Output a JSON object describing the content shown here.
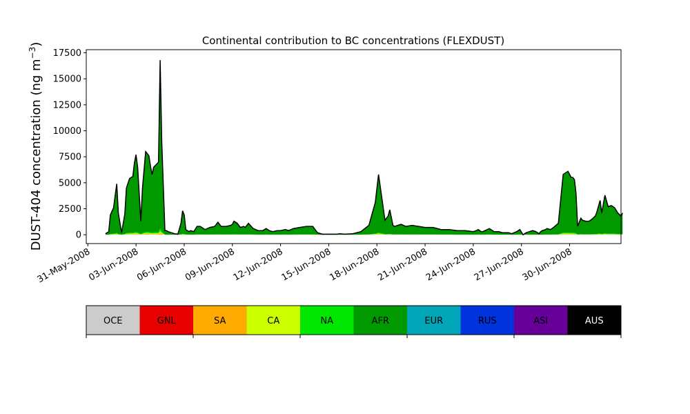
{
  "chart_data": {
    "type": "area",
    "title": "Continental contribution to BC concentrations (FLEXDUST)",
    "ylabel": "DUST-404 concentration (ng m",
    "ylabel_sup": "−3",
    "ylabel_close": ")",
    "xlabel": "",
    "ylim": [
      -850,
      17800
    ],
    "yticks": [
      0,
      2500,
      5000,
      7500,
      10000,
      12500,
      15000,
      17500
    ],
    "xlim_days": [
      -0.1,
      33.2
    ],
    "xticks": [
      {
        "day": 0,
        "label": "31-May-2008"
      },
      {
        "day": 3,
        "label": "03-Jun-2008"
      },
      {
        "day": 6,
        "label": "06-Jun-2008"
      },
      {
        "day": 9,
        "label": "09-Jun-2008"
      },
      {
        "day": 12,
        "label": "12-Jun-2008"
      },
      {
        "day": 15,
        "label": "15-Jun-2008"
      },
      {
        "day": 18,
        "label": "18-Jun-2008"
      },
      {
        "day": 21,
        "label": "21-Jun-2008"
      },
      {
        "day": 24,
        "label": "24-Jun-2008"
      },
      {
        "day": 27,
        "label": "27-Jun-2008"
      },
      {
        "day": 30,
        "label": "30-Jun-2008"
      }
    ],
    "legend_placement": "below",
    "stack_order": [
      "OCE",
      "GNL",
      "SA",
      "CA",
      "NA",
      "AFR",
      "EUR",
      "RUS",
      "ASI",
      "AUS"
    ],
    "series": [
      {
        "name": "OCE",
        "color": "#cccccc"
      },
      {
        "name": "GNL",
        "color": "#e60000"
      },
      {
        "name": "SA",
        "color": "#ffaa00"
      },
      {
        "name": "CA",
        "color": "#ccff00"
      },
      {
        "name": "NA",
        "color": "#00e600"
      },
      {
        "name": "AFR",
        "color": "#009900"
      },
      {
        "name": "EUR",
        "color": "#00a6b8"
      },
      {
        "name": "RUS",
        "color": "#0033dd"
      },
      {
        "name": "ASI",
        "color": "#660099"
      },
      {
        "name": "AUS",
        "color": "#000000"
      }
    ],
    "x_days": [
      1.1,
      1.3,
      1.4,
      1.6,
      1.8,
      1.9,
      2.1,
      2.3,
      2.4,
      2.6,
      2.8,
      2.9,
      3.0,
      3.1,
      3.3,
      3.4,
      3.6,
      3.8,
      3.9,
      4.0,
      4.1,
      4.3,
      4.4,
      4.5,
      4.6,
      4.8,
      4.9,
      5.0,
      5.2,
      5.4,
      5.6,
      5.8,
      5.9,
      6.0,
      6.1,
      6.3,
      6.4,
      6.6,
      6.8,
      7.0,
      7.3,
      7.6,
      7.9,
      8.1,
      8.3,
      8.6,
      8.9,
      9.0,
      9.1,
      9.3,
      9.5,
      9.7,
      9.8,
      10.0,
      10.3,
      10.6,
      10.9,
      11.1,
      11.3,
      11.5,
      11.8,
      12.0,
      12.3,
      12.5,
      12.8,
      13.2,
      13.6,
      14.0,
      14.3,
      14.6,
      14.9,
      15.1,
      15.3,
      15.5,
      15.7,
      16.0,
      16.5,
      17.0,
      17.5,
      17.9,
      18.1,
      18.4,
      18.5,
      18.7,
      18.8,
      19.0,
      19.1,
      19.3,
      19.5,
      19.8,
      20.2,
      20.6,
      21.0,
      21.5,
      22.0,
      22.5,
      23.0,
      23.5,
      24.0,
      24.2,
      24.3,
      24.5,
      24.6,
      25.0,
      25.3,
      25.5,
      25.6,
      25.8,
      26.0,
      26.2,
      26.4,
      26.7,
      26.9,
      27.1,
      27.3,
      27.5,
      27.7,
      27.9,
      28.1,
      28.2,
      28.3,
      28.5,
      28.6,
      28.8,
      29.0,
      29.3,
      29.6,
      29.9,
      30.1,
      30.2,
      30.3,
      30.4,
      30.5,
      30.7,
      30.8,
      31.0,
      31.2,
      31.4,
      31.6,
      31.7,
      31.9,
      32.0,
      32.2,
      32.4,
      32.6,
      32.8,
      33.0,
      33.2,
      33.3
    ],
    "total": [
      100,
      300,
      1900,
      2600,
      4900,
      2100,
      200,
      2000,
      4500,
      5400,
      5600,
      6900,
      7700,
      6500,
      1300,
      4500,
      8000,
      7600,
      6600,
      5800,
      6500,
      6800,
      7000,
      16800,
      9000,
      400,
      400,
      300,
      200,
      100,
      50,
      1100,
      2300,
      1900,
      500,
      300,
      400,
      300,
      800,
      800,
      500,
      700,
      800,
      1200,
      800,
      800,
      900,
      1000,
      1300,
      1100,
      700,
      800,
      700,
      1100,
      600,
      400,
      400,
      600,
      400,
      300,
      400,
      400,
      500,
      400,
      600,
      700,
      800,
      800,
      200,
      50,
      50,
      50,
      50,
      50,
      100,
      50,
      100,
      300,
      900,
      3100,
      5800,
      2500,
      1400,
      1800,
      2400,
      900,
      800,
      900,
      1000,
      800,
      900,
      800,
      700,
      700,
      500,
      500,
      400,
      400,
      300,
      400,
      500,
      300,
      300,
      600,
      300,
      300,
      300,
      200,
      200,
      200,
      100,
      300,
      500,
      0,
      200,
      300,
      400,
      300,
      100,
      300,
      400,
      500,
      600,
      500,
      700,
      1100,
      5800,
      6100,
      5500,
      5500,
      5300,
      4000,
      800,
      1600,
      1400,
      1300,
      1300,
      1500,
      1800,
      2200,
      3300,
      2100,
      3800,
      2700,
      2800,
      2600,
      2100,
      1800,
      2100,
      2100
    ],
    "fractions": {
      "OCE": 0.003,
      "GNL": 0.0,
      "SA": 0.007,
      "CA": 0.01,
      "NA": 0.015,
      "AFR": 0.953,
      "EUR": 0.004,
      "RUS": 0.004,
      "ASI": 0.002,
      "AUS": 0.002
    }
  }
}
